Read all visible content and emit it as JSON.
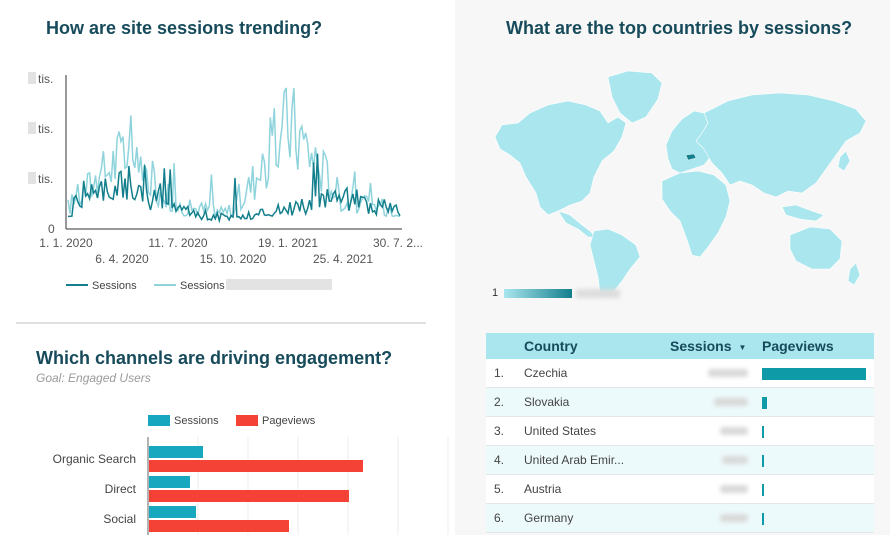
{
  "sessions_trend": {
    "title": "How are site sessions trending?",
    "y_tick_suffix": "tis.",
    "y_zero": "0",
    "x_ticks_row1": [
      "1. 1. 2020",
      "11. 7. 2020",
      "19. 1. 2021",
      "30. 7. 2..."
    ],
    "x_ticks_row2": [
      "6. 4. 2020",
      "15. 10. 2020",
      "25. 4. 2021"
    ],
    "legend": [
      "Sessions",
      "Sessions"
    ],
    "colors": {
      "current": "#137f8c",
      "previous": "#8fd3dc"
    }
  },
  "chart_data": [
    {
      "type": "line",
      "title": "How are site sessions trending?",
      "x": [
        "2020-01-01",
        "2020-04-06",
        "2020-07-11",
        "2020-10-15",
        "2021-01-19",
        "2021-04-25",
        "2021-07-30"
      ],
      "series": [
        {
          "name": "Sessions",
          "values": [
            0.35,
            0.95,
            0.3,
            0.15,
            0.4,
            0.6,
            0.3
          ]
        },
        {
          "name": "Sessions",
          "values": [
            0.4,
            1.6,
            0.4,
            0.3,
            2.3,
            0.5,
            0.35
          ]
        }
      ]
    },
    {
      "type": "bar",
      "title": "Which channels are driving engagement?",
      "categories": [
        "Organic Search",
        "Direct",
        "Social"
      ],
      "series": [
        {
          "name": "Sessions",
          "values": [
            54,
            41,
            47
          ]
        },
        {
          "name": "Pageviews",
          "values": [
            214,
            200,
            140
          ]
        }
      ]
    },
    {
      "type": "table",
      "title": "What are the top countries by sessions?",
      "columns": [
        "Country",
        "Sessions",
        "Pageviews"
      ],
      "rows": [
        {
          "rank": "1.",
          "country": "Czechia",
          "pageviews_share": 1.0
        },
        {
          "rank": "2.",
          "country": "Slovakia",
          "pageviews_share": 0.05
        },
        {
          "rank": "3.",
          "country": "United States",
          "pageviews_share": 0.01
        },
        {
          "rank": "4.",
          "country": "United Arab Emir...",
          "pageviews_share": 0.01
        },
        {
          "rank": "5.",
          "country": "Austria",
          "pageviews_share": 0.01
        },
        {
          "rank": "6.",
          "country": "Germany",
          "pageviews_share": 0.01
        }
      ]
    }
  ],
  "channels": {
    "title": "Which channels are driving engagement?",
    "goal": "Goal: Engaged Users",
    "legend": [
      "Sessions",
      "Pageviews"
    ],
    "colors": {
      "sessions": "#17a8c0",
      "pageviews": "#f44336"
    }
  },
  "countries": {
    "title": "What are the top countries by sessions?",
    "map_legend_min": "1",
    "columns": [
      "Country",
      "Sessions",
      "Pageviews"
    ],
    "sort_icon": "sort-desc-icon",
    "colors": {
      "map_fill": "#a9e6ee",
      "highlight": "#137f8c"
    }
  }
}
